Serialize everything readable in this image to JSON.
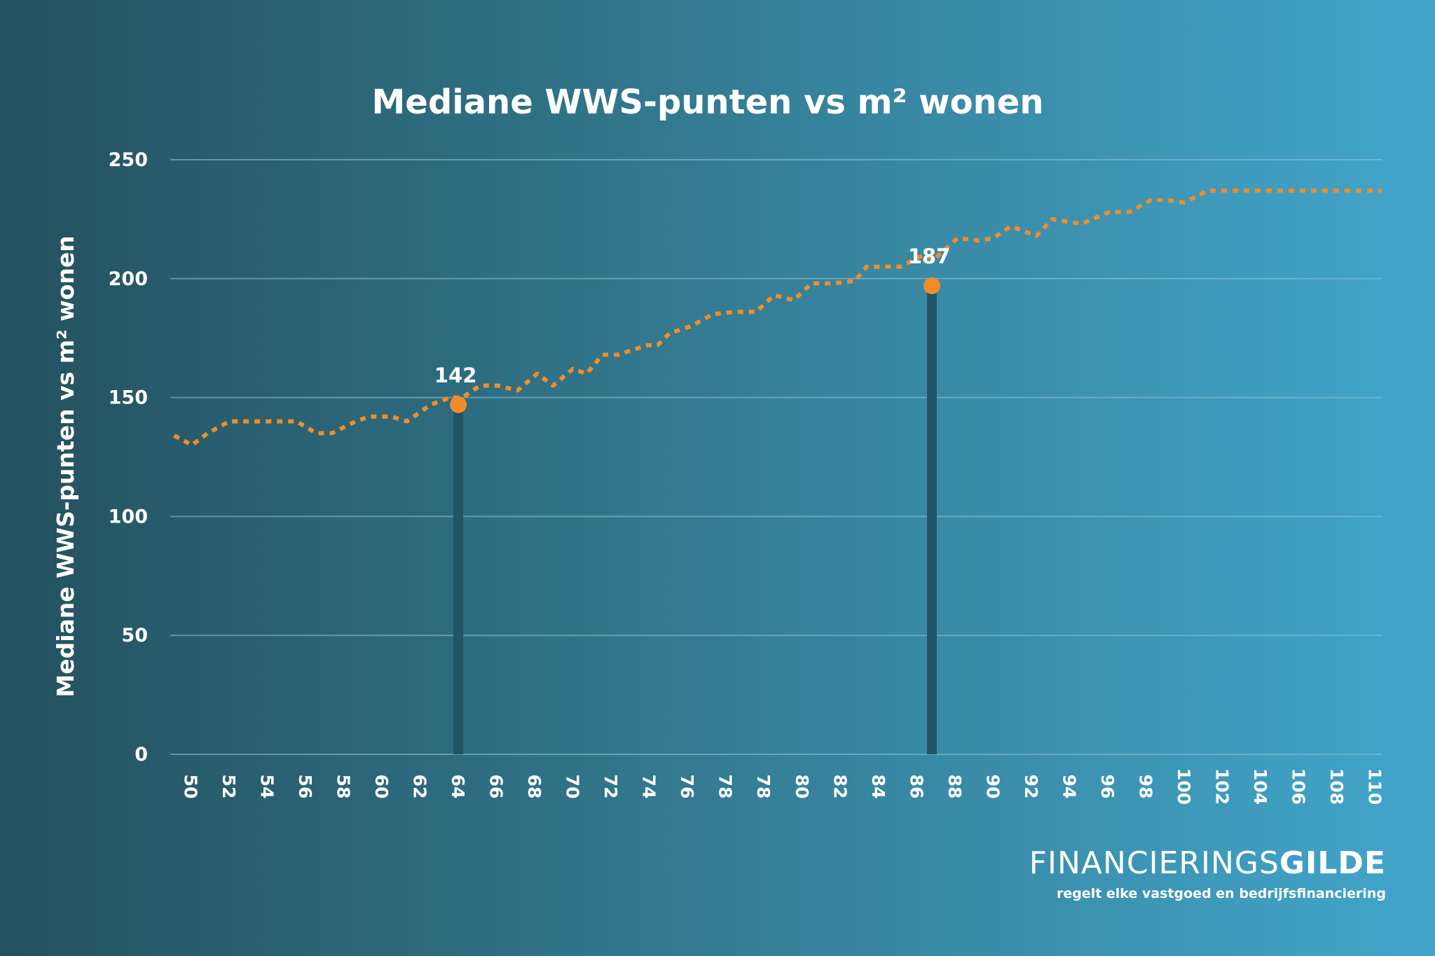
{
  "chart_data": {
    "type": "line",
    "title": "Mediane WWS-punten vs m² wonen",
    "ylabel": "Mediane WWS-punten vs m² wonen",
    "xlabel": "",
    "ylim": [
      0,
      250
    ],
    "yticks": [
      0,
      50,
      100,
      150,
      200,
      250
    ],
    "xticks": [
      "50",
      "52",
      "54",
      "56",
      "58",
      "60",
      "62",
      "64",
      "66",
      "68",
      "70",
      "72",
      "74",
      "76",
      "78",
      "78",
      "80",
      "82",
      "84",
      "86",
      "88",
      "90",
      "92",
      "94",
      "96",
      "98",
      "100",
      "102",
      "104",
      "106",
      "108",
      "110"
    ],
    "grid": true,
    "line_color": "#f28c28",
    "marker_color": "#f28c28",
    "bar_color": "#1f5564",
    "x": [
      48.8,
      49.7,
      50.5,
      51.6,
      53.2,
      55.0,
      56.0,
      56.8,
      58.0,
      58.7,
      59.8,
      60.6,
      61.8,
      62.8,
      63.4,
      64.3,
      65.2,
      66.2,
      67.2,
      68.0,
      69.0,
      69.7,
      70.5,
      71.3,
      72.0,
      72.8,
      73.3,
      73.9,
      75.0,
      76.1,
      77.2,
      78.3,
      79.2,
      80.2,
      81.1,
      82.2,
      83.3,
      83.9,
      85.6,
      86.8,
      87.3,
      88.5,
      89.6,
      90.3,
      91.2,
      92.5,
      93.3,
      94.8,
      95.6,
      96.2,
      97.2,
      98.3,
      99.1,
      100.0,
      101.2,
      101.8,
      103.0,
      104.1,
      105.1,
      106.5,
      107.3,
      108.9,
      109.8,
      110.0
    ],
    "values": [
      134,
      130,
      135,
      140,
      140,
      140,
      135,
      135,
      140,
      142,
      142,
      140,
      147,
      150,
      150,
      155,
      155,
      153,
      160,
      155,
      162,
      160,
      168,
      168,
      170,
      172,
      172,
      177,
      180,
      185,
      186,
      186,
      193,
      191,
      198,
      198,
      199,
      205,
      205,
      210,
      208,
      217,
      216,
      217,
      222,
      218,
      225,
      223,
      226,
      228,
      228,
      233,
      233,
      232,
      237,
      237,
      237,
      237,
      237,
      237,
      237,
      237,
      237,
      237
    ],
    "highlights": [
      {
        "x": 63.2,
        "y": 147,
        "label": "142"
      },
      {
        "x": 87.2,
        "y": 197,
        "label": "187"
      }
    ]
  },
  "brand": {
    "name_light": "FINANCIERINGS",
    "name_bold": "GILDE",
    "tagline": "regelt elke vastgoed en bedrijfsfinanciering"
  }
}
